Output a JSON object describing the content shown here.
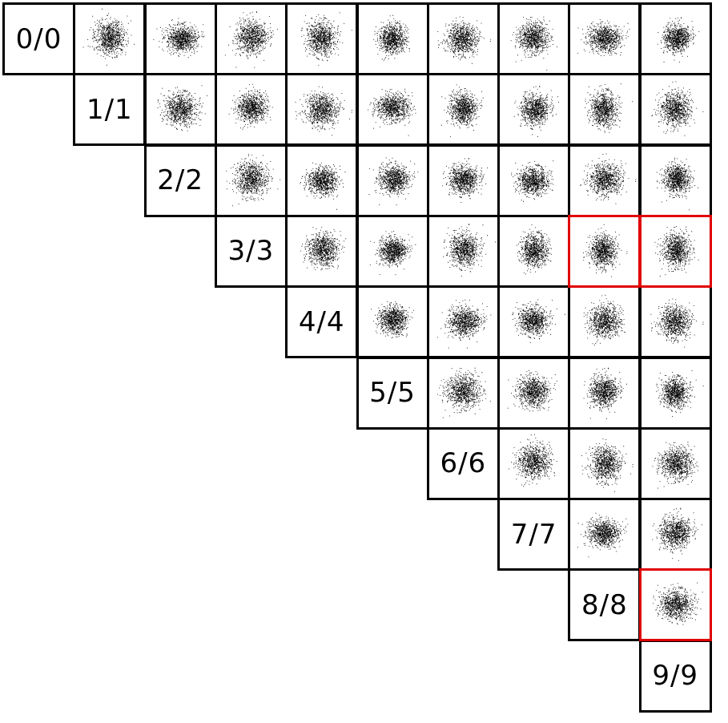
{
  "matrix": {
    "size": 10,
    "diagonal_labels": [
      "0/0",
      "1/1",
      "2/2",
      "3/3",
      "4/4",
      "5/5",
      "6/6",
      "7/7",
      "8/8",
      "9/9"
    ],
    "highlight_color": "#e00000",
    "border_color": "#000000",
    "point_color": "#000000",
    "highlighted_cells": [
      {
        "row": 3,
        "col": 8
      },
      {
        "row": 3,
        "col": 9
      },
      {
        "row": 8,
        "col": 9
      }
    ]
  }
}
